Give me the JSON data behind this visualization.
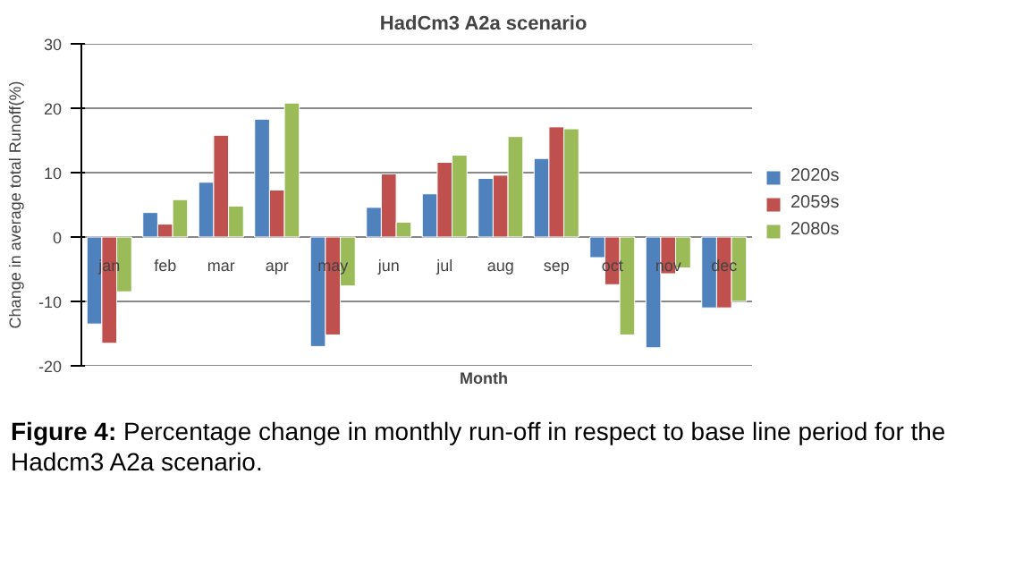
{
  "chart_data": {
    "type": "bar",
    "title": "HadCm3 A2a scenario",
    "xlabel": "Month",
    "ylabel": "Change in average total Runoff(%)",
    "categories": [
      "jan",
      "feb",
      "mar",
      "apr",
      "may",
      "jun",
      "jul",
      "aug",
      "sep",
      "oct",
      "nov",
      "dec"
    ],
    "series": [
      {
        "name": "2020s",
        "color": "#4f81bd",
        "values": [
          -13.5,
          3.8,
          8.5,
          18.3,
          -17,
          4.6,
          6.7,
          9.1,
          12.2,
          -3.2,
          -17.2,
          -11
        ]
      },
      {
        "name": "2059s",
        "color": "#c0504d",
        "values": [
          -16.5,
          2,
          15.8,
          7.3,
          -15.2,
          9.8,
          11.6,
          9.6,
          17.1,
          -7.4,
          -5.7,
          -11
        ]
      },
      {
        "name": "2080s",
        "color": "#9bbb59",
        "values": [
          -8.5,
          5.8,
          4.8,
          20.8,
          -7.6,
          2.3,
          12.7,
          15.6,
          16.8,
          -15.2,
          -4.8,
          -10
        ]
      }
    ],
    "ylim": [
      -20,
      30
    ],
    "yticks": [
      -20,
      -10,
      0,
      10,
      20,
      30
    ],
    "grid": "y",
    "legend": "right",
    "annotations": [
      "Figure 4: Percentage change in monthly run-off in respect to base line period for the Hadcm3 A2a scenario."
    ]
  }
}
